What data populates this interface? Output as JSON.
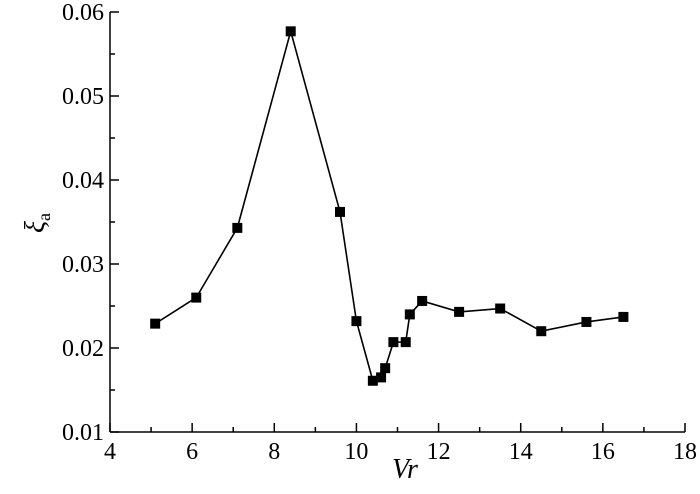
{
  "chart_data": {
    "type": "line",
    "title": "",
    "xlabel": "Vr",
    "ylabel": "ξa",
    "ylabel_main": "ξ",
    "ylabel_sub": "a",
    "xlim": [
      4,
      18
    ],
    "ylim": [
      0.01,
      0.06
    ],
    "x_ticks": [
      4,
      6,
      8,
      10,
      12,
      14,
      16,
      18
    ],
    "x_tick_labels": [
      "4",
      "6",
      "8",
      "10",
      "12",
      "14",
      "16",
      "18"
    ],
    "y_ticks": [
      0.01,
      0.02,
      0.03,
      0.04,
      0.05,
      0.06
    ],
    "y_tick_labels": [
      "0.01",
      "0.02",
      "0.03",
      "0.04",
      "0.05",
      "0.06"
    ],
    "grid": false,
    "legend": "none",
    "marker": "square",
    "color": "#000000",
    "series": [
      {
        "x": [
          5.1,
          6.1,
          7.1,
          8.4,
          9.6,
          10.0,
          10.4,
          10.6,
          10.7,
          10.9,
          11.2,
          11.3,
          11.6,
          12.5,
          13.5,
          14.5,
          15.6,
          16.5
        ],
        "values": [
          0.0229,
          0.026,
          0.0343,
          0.0577,
          0.0362,
          0.0232,
          0.0161,
          0.0165,
          0.0176,
          0.0207,
          0.0207,
          0.024,
          0.0256,
          0.0243,
          0.0247,
          0.022,
          0.0231,
          0.0237
        ]
      }
    ]
  }
}
